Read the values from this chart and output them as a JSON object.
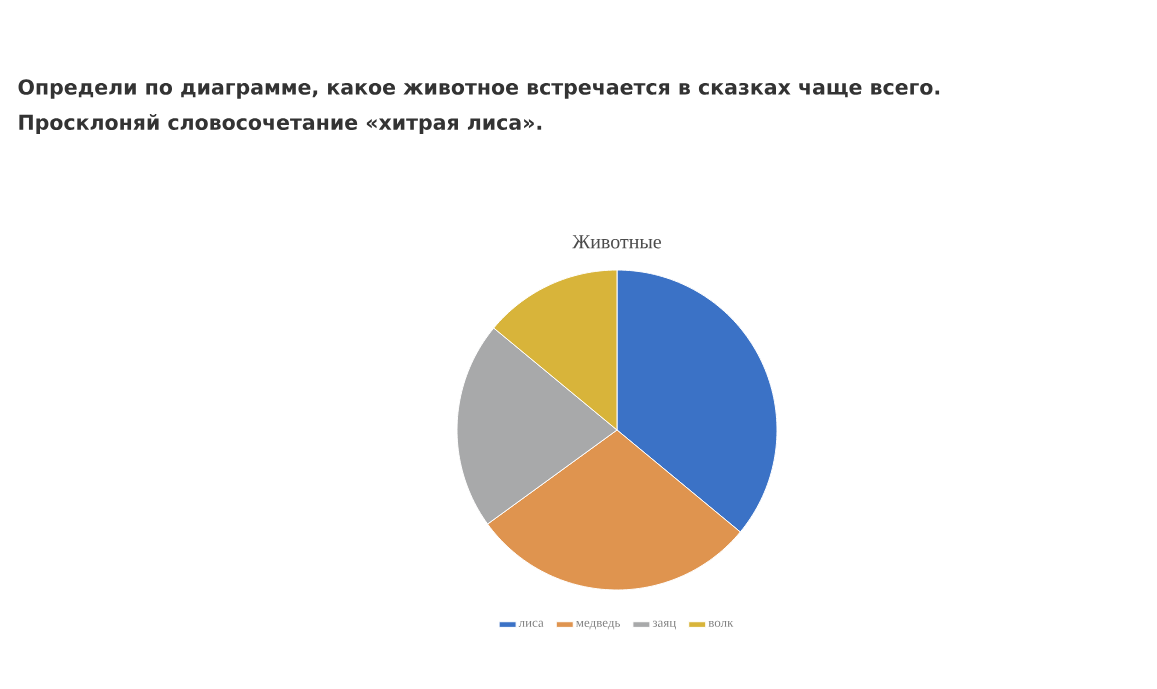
{
  "chart_data": {
    "type": "pie",
    "title": "Животные",
    "annotations": [
      "Определи по диаграмме, какое животное встречается в сказках чаще всего.",
      "Просклоняй словосочетание «хитрая лиса»."
    ],
    "categories": [
      "лиса",
      "медведь",
      "заяц",
      "волк"
    ],
    "values": [
      36,
      29,
      21,
      14
    ],
    "colors": [
      "#3b72c6",
      "#df944f",
      "#a8a9aa",
      "#d8b43a"
    ],
    "legend": "bottom"
  }
}
